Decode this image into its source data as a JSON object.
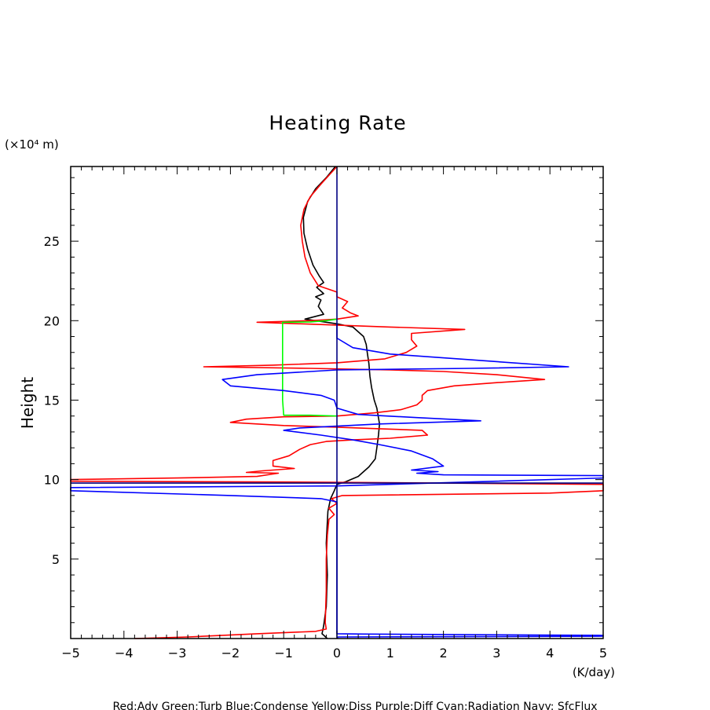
{
  "chart_data": {
    "type": "line",
    "title": "Heating Rate",
    "ylabel": "Height",
    "yunit": "(×10⁴ m)",
    "xunit": "(K/day)",
    "xlim": [
      -5,
      5
    ],
    "ylim": [
      0,
      29.7
    ],
    "xticks": [
      -5,
      -4,
      -3,
      -2,
      -1,
      0,
      1,
      2,
      3,
      4,
      5
    ],
    "yticks": [
      5,
      10,
      15,
      20,
      25
    ],
    "grid": false,
    "legend_text": "Red:Adv  Green:Turb  Blue:Condense  Yellow:Diss  Purple:Diff  Cyan:Radiation  Navy: SfcFlux",
    "series": [
      {
        "color": "#000000",
        "points": [
          [
            -0.18,
            0.0
          ],
          [
            -0.28,
            0.3
          ],
          [
            -0.25,
            0.8
          ],
          [
            -0.2,
            2.0
          ],
          [
            -0.18,
            4.0
          ],
          [
            -0.2,
            6.0
          ],
          [
            -0.17,
            8.0
          ],
          [
            -0.12,
            8.8
          ],
          [
            -0.05,
            9.3
          ],
          [
            0.0,
            9.7
          ],
          [
            0.15,
            9.85
          ],
          [
            0.4,
            10.2
          ],
          [
            0.6,
            10.8
          ],
          [
            0.72,
            11.3
          ],
          [
            0.75,
            12.0
          ],
          [
            0.78,
            12.8
          ],
          [
            0.8,
            13.5
          ],
          [
            0.75,
            14.5
          ],
          [
            0.7,
            15.0
          ],
          [
            0.65,
            15.8
          ],
          [
            0.62,
            16.5
          ],
          [
            0.6,
            17.3
          ],
          [
            0.57,
            18.0
          ],
          [
            0.55,
            18.5
          ],
          [
            0.5,
            19.0
          ],
          [
            0.3,
            19.6
          ],
          [
            0.0,
            19.8
          ],
          [
            -0.3,
            19.95
          ],
          [
            -0.6,
            20.1
          ],
          [
            -0.25,
            20.4
          ],
          [
            -0.35,
            20.9
          ],
          [
            -0.3,
            21.3
          ],
          [
            -0.4,
            21.5
          ],
          [
            -0.25,
            21.7
          ],
          [
            -0.38,
            22.1
          ],
          [
            -0.25,
            22.4
          ],
          [
            -0.33,
            22.8
          ],
          [
            -0.45,
            23.5
          ],
          [
            -0.55,
            24.5
          ],
          [
            -0.62,
            25.5
          ],
          [
            -0.63,
            26.5
          ],
          [
            -0.55,
            27.5
          ],
          [
            -0.4,
            28.3
          ],
          [
            -0.2,
            29.0
          ],
          [
            -0.03,
            29.7
          ]
        ]
      },
      {
        "color": "#ff0000",
        "points": [
          [
            -3.8,
            0.0
          ],
          [
            -2.8,
            0.1
          ],
          [
            -1.5,
            0.3
          ],
          [
            -0.4,
            0.45
          ],
          [
            -0.2,
            0.6
          ],
          [
            -0.22,
            1.0
          ],
          [
            -0.2,
            3.0
          ],
          [
            -0.2,
            5.0
          ],
          [
            -0.18,
            6.5
          ],
          [
            -0.15,
            7.5
          ],
          [
            -0.05,
            7.8
          ],
          [
            -0.15,
            8.2
          ],
          [
            0.0,
            8.5
          ],
          [
            -0.1,
            8.8
          ],
          [
            0.1,
            9.0
          ],
          [
            4.0,
            9.15
          ],
          [
            5.0,
            9.3
          ],
          [
            5.0,
            9.7
          ],
          [
            2.0,
            9.78
          ],
          [
            -1.0,
            9.85
          ],
          [
            -5.0,
            9.9
          ],
          [
            -5.0,
            10.0
          ],
          [
            -3.0,
            10.1
          ],
          [
            -1.5,
            10.2
          ],
          [
            -1.1,
            10.4
          ],
          [
            -1.7,
            10.45
          ],
          [
            -1.4,
            10.55
          ],
          [
            -0.8,
            10.7
          ],
          [
            -1.2,
            10.85
          ],
          [
            -1.2,
            11.2
          ],
          [
            -0.9,
            11.5
          ],
          [
            -0.7,
            11.9
          ],
          [
            -0.5,
            12.2
          ],
          [
            -0.2,
            12.4
          ],
          [
            0.3,
            12.5
          ],
          [
            1.0,
            12.6
          ],
          [
            1.7,
            12.8
          ],
          [
            1.6,
            13.1
          ],
          [
            0.8,
            13.2
          ],
          [
            0.0,
            13.3
          ],
          [
            -1.0,
            13.4
          ],
          [
            -2.0,
            13.6
          ],
          [
            -1.7,
            13.8
          ],
          [
            -1.0,
            13.95
          ],
          [
            0.0,
            14.0
          ],
          [
            0.7,
            14.2
          ],
          [
            1.2,
            14.4
          ],
          [
            1.5,
            14.7
          ],
          [
            1.6,
            15.0
          ],
          [
            1.6,
            15.3
          ],
          [
            1.7,
            15.6
          ],
          [
            2.2,
            15.9
          ],
          [
            3.0,
            16.1
          ],
          [
            3.9,
            16.3
          ],
          [
            3.0,
            16.6
          ],
          [
            2.0,
            16.8
          ],
          [
            1.0,
            16.9
          ],
          [
            -0.5,
            17.0
          ],
          [
            -2.5,
            17.1
          ],
          [
            -1.2,
            17.2
          ],
          [
            0.0,
            17.35
          ],
          [
            0.9,
            17.6
          ],
          [
            1.3,
            18.0
          ],
          [
            1.5,
            18.4
          ],
          [
            1.4,
            18.8
          ],
          [
            1.4,
            19.2
          ],
          [
            2.4,
            19.45
          ],
          [
            1.0,
            19.6
          ],
          [
            -1.5,
            19.9
          ],
          [
            -0.5,
            20.0
          ],
          [
            0.0,
            20.1
          ],
          [
            0.4,
            20.3
          ],
          [
            0.25,
            20.5
          ],
          [
            0.1,
            20.8
          ],
          [
            0.2,
            21.2
          ],
          [
            0.0,
            21.5
          ],
          [
            0.0,
            21.8
          ],
          [
            -0.35,
            22.2
          ],
          [
            -0.5,
            23.0
          ],
          [
            -0.6,
            24.0
          ],
          [
            -0.65,
            25.0
          ],
          [
            -0.68,
            26.0
          ],
          [
            -0.62,
            27.0
          ],
          [
            -0.5,
            27.8
          ],
          [
            -0.3,
            28.6
          ],
          [
            0.0,
            29.7
          ]
        ]
      },
      {
        "color": "#00ff00",
        "points": [
          [
            0.0,
            14.0
          ],
          [
            -0.2,
            14.02
          ],
          [
            -0.5,
            14.05
          ],
          [
            -1.0,
            14.05
          ],
          [
            -1.02,
            15.0
          ],
          [
            -1.02,
            17.0
          ],
          [
            -1.02,
            19.9
          ],
          [
            -0.5,
            19.92
          ],
          [
            -0.2,
            20.0
          ],
          [
            0.0,
            20.1
          ]
        ]
      },
      {
        "color": "#0000ff",
        "points": [
          [
            0.0,
            0.0
          ],
          [
            0.02,
            0.1
          ],
          [
            5.0,
            0.15
          ],
          [
            5.0,
            0.2
          ],
          [
            0.5,
            0.28
          ],
          [
            0.0,
            0.3
          ],
          [
            0.0,
            8.6
          ],
          [
            -0.3,
            8.8
          ],
          [
            -2.0,
            9.0
          ],
          [
            -5.0,
            9.3
          ],
          [
            -5.0,
            9.5
          ],
          [
            0.0,
            9.6
          ],
          [
            5.0,
            10.1
          ],
          [
            5.0,
            10.25
          ],
          [
            2.0,
            10.3
          ],
          [
            1.5,
            10.4
          ],
          [
            1.9,
            10.5
          ],
          [
            1.4,
            10.6
          ],
          [
            2.0,
            10.85
          ],
          [
            1.8,
            11.3
          ],
          [
            1.4,
            11.8
          ],
          [
            0.8,
            12.2
          ],
          [
            0.3,
            12.5
          ],
          [
            -0.3,
            12.8
          ],
          [
            -1.0,
            13.1
          ],
          [
            -0.7,
            13.25
          ],
          [
            0.8,
            13.5
          ],
          [
            2.7,
            13.7
          ],
          [
            1.5,
            13.9
          ],
          [
            0.4,
            14.1
          ],
          [
            0.0,
            14.5
          ],
          [
            -0.05,
            15.0
          ],
          [
            -0.3,
            15.3
          ],
          [
            -1.0,
            15.6
          ],
          [
            -2.0,
            15.9
          ],
          [
            -2.15,
            16.3
          ],
          [
            -1.5,
            16.6
          ],
          [
            0.0,
            16.9
          ],
          [
            2.5,
            17.0
          ],
          [
            4.35,
            17.1
          ],
          [
            1.0,
            17.9
          ],
          [
            0.3,
            18.3
          ],
          [
            0.0,
            18.9
          ],
          [
            0.0,
            19.5
          ],
          [
            0.0,
            19.8
          ]
        ]
      },
      {
        "color": "#000080",
        "points": [
          [
            0.0,
            0.0
          ],
          [
            0.0,
            29.7
          ]
        ]
      },
      {
        "color": "#000080",
        "points": [
          [
            -5.0,
            9.78
          ],
          [
            5.0,
            9.78
          ]
        ]
      }
    ]
  }
}
